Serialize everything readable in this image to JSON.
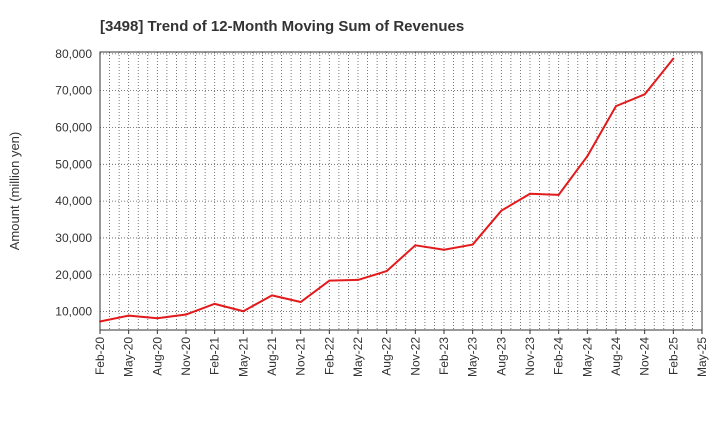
{
  "chart_data": {
    "type": "line",
    "title": "[3498]  Trend of 12-Month Moving Sum of Revenues",
    "xlabel": "",
    "ylabel": "Amount (million yen)",
    "ylim": [
      5000,
      80500
    ],
    "yticks": [
      10000,
      20000,
      30000,
      40000,
      50000,
      60000,
      70000,
      80000
    ],
    "ytick_labels": [
      "10,000",
      "20,000",
      "30,000",
      "40,000",
      "50,000",
      "60,000",
      "70,000",
      "80,000"
    ],
    "x_tick_labels": [
      "Feb-20",
      "May-20",
      "Aug-20",
      "Nov-20",
      "Feb-21",
      "May-21",
      "Aug-21",
      "Nov-21",
      "Feb-22",
      "May-22",
      "Aug-22",
      "Nov-22",
      "Feb-23",
      "May-23",
      "Aug-23",
      "Nov-23",
      "Feb-24",
      "May-24",
      "Aug-24",
      "Nov-24",
      "Feb-25",
      "May-25"
    ],
    "grid": true,
    "color": "#e31a1c",
    "series": [
      {
        "x": [
          "Feb-20",
          "May-20",
          "Aug-20",
          "Nov-20",
          "Feb-21",
          "May-21",
          "Aug-21",
          "Nov-21",
          "Feb-22",
          "May-22",
          "Aug-22",
          "Nov-22",
          "Feb-23",
          "May-23",
          "Aug-23",
          "Nov-23",
          "Feb-24",
          "May-24",
          "Aug-24",
          "Nov-24",
          "Feb-25"
        ],
        "values": [
          7300,
          8900,
          8200,
          9200,
          12100,
          10100,
          14400,
          12600,
          18400,
          18600,
          21000,
          28000,
          26800,
          28200,
          37400,
          42000,
          41700,
          52200,
          65800,
          69000,
          78700
        ]
      }
    ]
  }
}
